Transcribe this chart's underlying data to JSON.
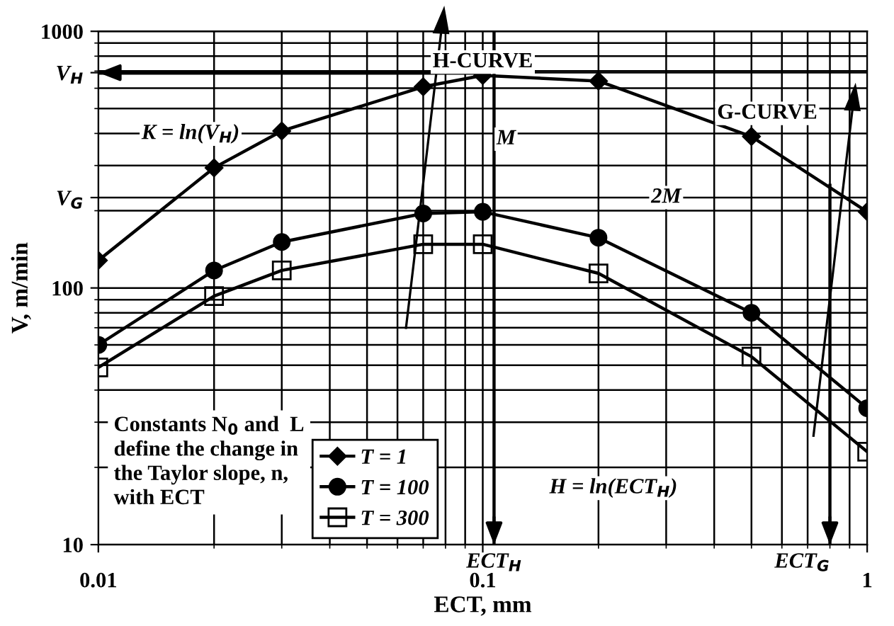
{
  "chart_data": {
    "type": "line",
    "xlabel": "ECT, mm",
    "ylabel": "V, m/min",
    "log": "xy",
    "x": [
      0.01,
      0.02,
      0.03,
      0.07,
      0.1,
      0.2,
      0.5,
      1
    ],
    "series": [
      {
        "name": "T = 1",
        "color": "#000000",
        "marker": "diamond",
        "values": [
          128,
          294,
          409,
          608,
          673,
          640,
          389,
          198
        ]
      },
      {
        "name": "T = 100",
        "color": "#000000",
        "marker": "circle",
        "values": [
          60,
          117,
          151,
          195,
          198,
          157,
          80,
          34
        ]
      },
      {
        "name": "T = 300",
        "color": "#000000",
        "marker": "square",
        "values": [
          49,
          93,
          117,
          148,
          148,
          114,
          54,
          23
        ]
      }
    ],
    "xlim": [
      0.01,
      1
    ],
    "ylim": [
      10,
      1000
    ],
    "xticks": [
      0.01,
      0.1,
      1
    ],
    "yticks": [
      10,
      100,
      1000,
      {
        "value": 690,
        "label": "V$_{H}$"
      },
      {
        "value": 225,
        "label": "V$_{G}$"
      }
    ],
    "grid": true,
    "legend": "bottom",
    "ref_lines": [
      {
        "axis": "y",
        "value": 690,
        "label": null
      },
      {
        "axis": "x",
        "value": 0.107,
        "label": "ECT$_{H}$"
      },
      {
        "axis": "x",
        "value": 0.8,
        "label": "ECT$_{G}$"
      }
    ],
    "annotations": [
      "H-CURVE",
      "G-CURVE",
      "K = ln(V$_{H}$)",
      {
        "text": "M",
        "x": 0.115,
        "y": 380
      },
      {
        "text": "2M",
        "x": 0.3,
        "y": 225
      },
      "H = ln(ECT$_{H}$)",
      "Constants N$_{0}$ and  L\ndefine the change in\nthe Taylor slope, n,\nwith ECT"
    ]
  }
}
